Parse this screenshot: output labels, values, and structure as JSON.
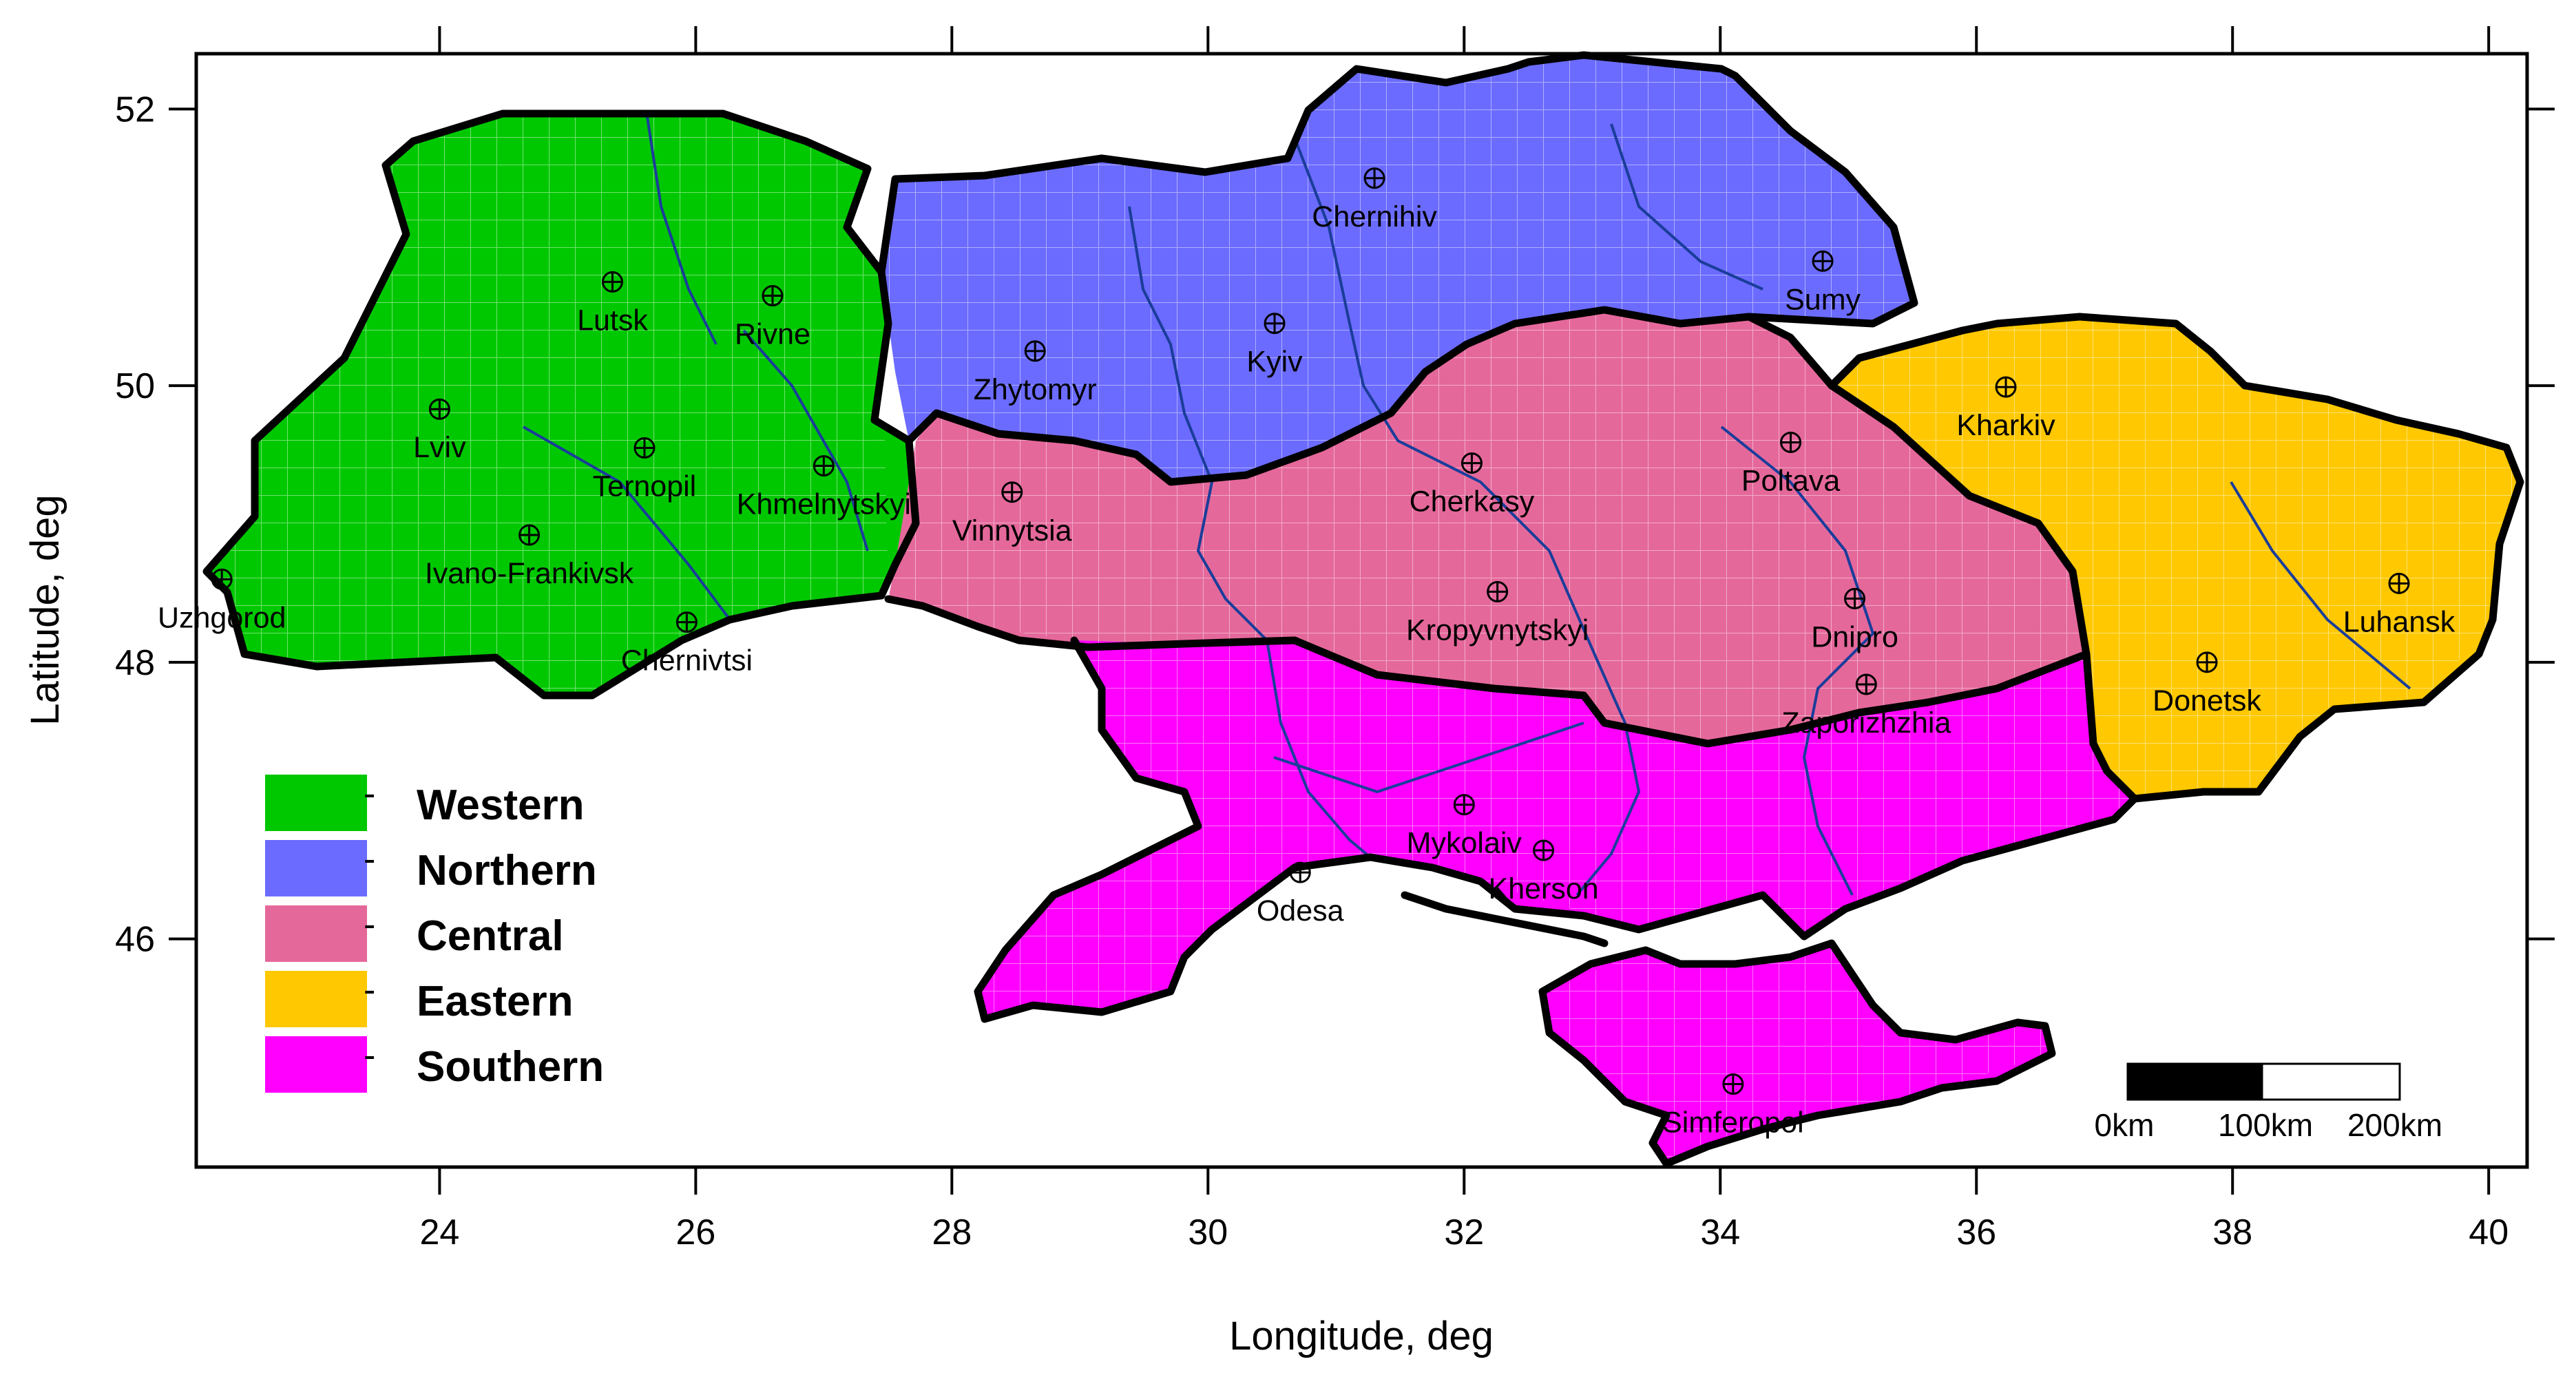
{
  "axes": {
    "xlabel": "Longitude, deg",
    "ylabel": "Latitude, deg",
    "xlim": [
      22.1,
      40.3
    ],
    "ylim": [
      44.35,
      52.4
    ],
    "xticks": [
      "24",
      "26",
      "28",
      "30",
      "32",
      "34",
      "36",
      "38",
      "40"
    ],
    "yticks": [
      "46",
      "48",
      "50",
      "52"
    ]
  },
  "legend": [
    {
      "key": "western",
      "label": "Western",
      "color": "#00c800",
      "dash": "-"
    },
    {
      "key": "northern",
      "label": "Northern",
      "color": "#6b6bff",
      "dash": "-"
    },
    {
      "key": "central",
      "label": "Central",
      "color": "#e5689b",
      "dash": "-"
    },
    {
      "key": "eastern",
      "label": "Eastern",
      "color": "#ffc800",
      "dash": "-"
    },
    {
      "key": "southern",
      "label": "Southern",
      "color": "#ff00ff",
      "dash": "-"
    }
  ],
  "cities": [
    {
      "name": "Uzhgorod",
      "lon": 22.3,
      "lat": 48.6
    },
    {
      "name": "Lutsk",
      "lon": 25.35,
      "lat": 50.75
    },
    {
      "name": "Rivne",
      "lon": 26.6,
      "lat": 50.65
    },
    {
      "name": "Lviv",
      "lon": 24.0,
      "lat": 49.83
    },
    {
      "name": "Ternopil",
      "lon": 25.6,
      "lat": 49.55
    },
    {
      "name": "Khmelnytskyi",
      "lon": 27.0,
      "lat": 49.42
    },
    {
      "name": "Ivano-Frankivsk",
      "lon": 24.7,
      "lat": 48.92
    },
    {
      "name": "Chernivtsi",
      "lon": 25.93,
      "lat": 48.29
    },
    {
      "name": "Zhytomyr",
      "lon": 28.65,
      "lat": 50.25
    },
    {
      "name": "Kyiv",
      "lon": 30.52,
      "lat": 50.45
    },
    {
      "name": "Chernihiv",
      "lon": 31.3,
      "lat": 51.5
    },
    {
      "name": "Sumy",
      "lon": 34.8,
      "lat": 50.9
    },
    {
      "name": "Vinnytsia",
      "lon": 28.47,
      "lat": 49.23
    },
    {
      "name": "Cherkasy",
      "lon": 32.06,
      "lat": 49.44
    },
    {
      "name": "Poltava",
      "lon": 34.55,
      "lat": 49.59
    },
    {
      "name": "Kropyvnytskyi",
      "lon": 32.26,
      "lat": 48.51
    },
    {
      "name": "Dnipro",
      "lon": 35.05,
      "lat": 48.46
    },
    {
      "name": "Zaporizhzhia",
      "lon": 35.14,
      "lat": 47.84
    },
    {
      "name": "Kharkiv",
      "lon": 36.23,
      "lat": 49.99
    },
    {
      "name": "Luhansk",
      "lon": 39.3,
      "lat": 48.57
    },
    {
      "name": "Donetsk",
      "lon": 37.8,
      "lat": 48.0
    },
    {
      "name": "Mykolaiv",
      "lon": 32.0,
      "lat": 46.97
    },
    {
      "name": "Kherson",
      "lon": 32.62,
      "lat": 46.64
    },
    {
      "name": "Odesa",
      "lon": 30.72,
      "lat": 46.48
    },
    {
      "name": "Simferopol",
      "lon": 34.1,
      "lat": 44.95
    }
  ],
  "scale_bar": {
    "labels": [
      "0km",
      "100km",
      "200km"
    ]
  }
}
